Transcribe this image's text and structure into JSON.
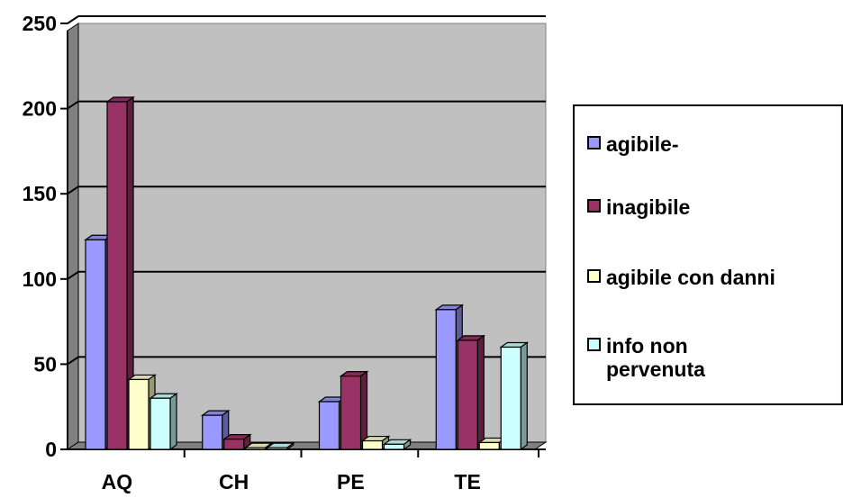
{
  "chart_data": {
    "type": "bar",
    "title": "",
    "xlabel": "",
    "ylabel": "",
    "categories": [
      "AQ",
      "CH",
      "PE",
      "TE"
    ],
    "ylim": [
      0,
      250
    ],
    "yticks": [
      "0",
      "50",
      "100",
      "150",
      "200",
      "250"
    ],
    "grid": true,
    "legend_position": "right",
    "series": [
      {
        "name": "agibile-",
        "values": [
          123,
          20,
          28,
          82
        ],
        "color": "#9999ff"
      },
      {
        "name": "inagibile",
        "values": [
          204,
          6,
          43,
          64
        ],
        "color": "#993366"
      },
      {
        "name": "agibile con danni",
        "values": [
          41,
          1,
          5,
          4
        ],
        "color": "#ffffcc"
      },
      {
        "name": "info non\npervenuta",
        "values": [
          30,
          1,
          3,
          60
        ],
        "color": "#ccffff"
      }
    ]
  }
}
